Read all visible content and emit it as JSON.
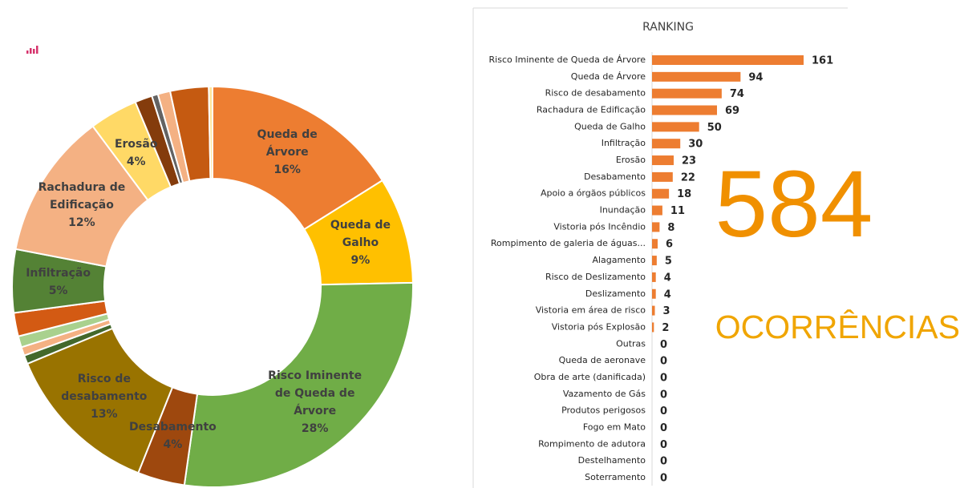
{
  "chart_data": [
    {
      "type": "pie",
      "categories": [
        "Queda de Árvore",
        "Queda de Galho",
        "Risco Iminente de Queda de Árvore",
        "Desabamento",
        "Risco de desabamento",
        null,
        null,
        null,
        null,
        "Infiltração",
        "Rachadura de Edificação",
        "Erosão",
        null,
        null,
        null,
        null,
        null
      ],
      "values": [
        16.1,
        8.6,
        27.6,
        3.8,
        12.7,
        0.7,
        0.7,
        0.9,
        1.9,
        5.1,
        11.8,
        3.9,
        1.4,
        0.5,
        1.0,
        3.1,
        0.3
      ],
      "value_labels": [
        "16%",
        "9%",
        "28%",
        "4%",
        "13%",
        null,
        null,
        null,
        null,
        "5%",
        "12%",
        "4%",
        null,
        null,
        null,
        null,
        null
      ],
      "colors": [
        "#ED7D31",
        "#FFC000",
        "#70AD47",
        "#9E480E",
        "#997300",
        "#43682B",
        "#F4B183",
        "#A9D18E",
        "#D35A13",
        "#548235",
        "#F4B183",
        "#FFD966",
        "#843C0C",
        "#636363",
        "#F4B183",
        "#C55A11",
        "#FFE699"
      ]
    },
    {
      "type": "bar",
      "orientation": "horizontal",
      "title": "RANKING",
      "color": "#ED7D31",
      "categories": [
        "Risco Iminente de Queda de Árvore",
        "Queda de Árvore",
        "Risco de desabamento",
        "Rachadura de Edificação",
        "Queda de Galho",
        "Infiltração",
        "Erosão",
        "Desabamento",
        "Apoio a órgãos públicos",
        "Inundação",
        "Vistoria pós Incêndio",
        "Rompimento de galeria de águas...",
        "Alagamento",
        "Risco de Deslizamento",
        "Deslizamento",
        "Vistoria em área de risco",
        "Vistoria pós Explosão",
        "Outras",
        "Queda de aeronave",
        "Obra de arte (danificada)",
        "Vazamento de Gás",
        "Produtos perigosos",
        "Fogo em Mato",
        "Rompimento de adutora",
        "Destelhamento",
        "Soterramento"
      ],
      "values": [
        161,
        94,
        74,
        69,
        50,
        30,
        23,
        22,
        18,
        11,
        8,
        6,
        5,
        4,
        4,
        3,
        2,
        0,
        0,
        0,
        0,
        0,
        0,
        0,
        0,
        0
      ]
    }
  ],
  "summary": {
    "value": 584,
    "label": "OCORRÊNCIAS"
  }
}
